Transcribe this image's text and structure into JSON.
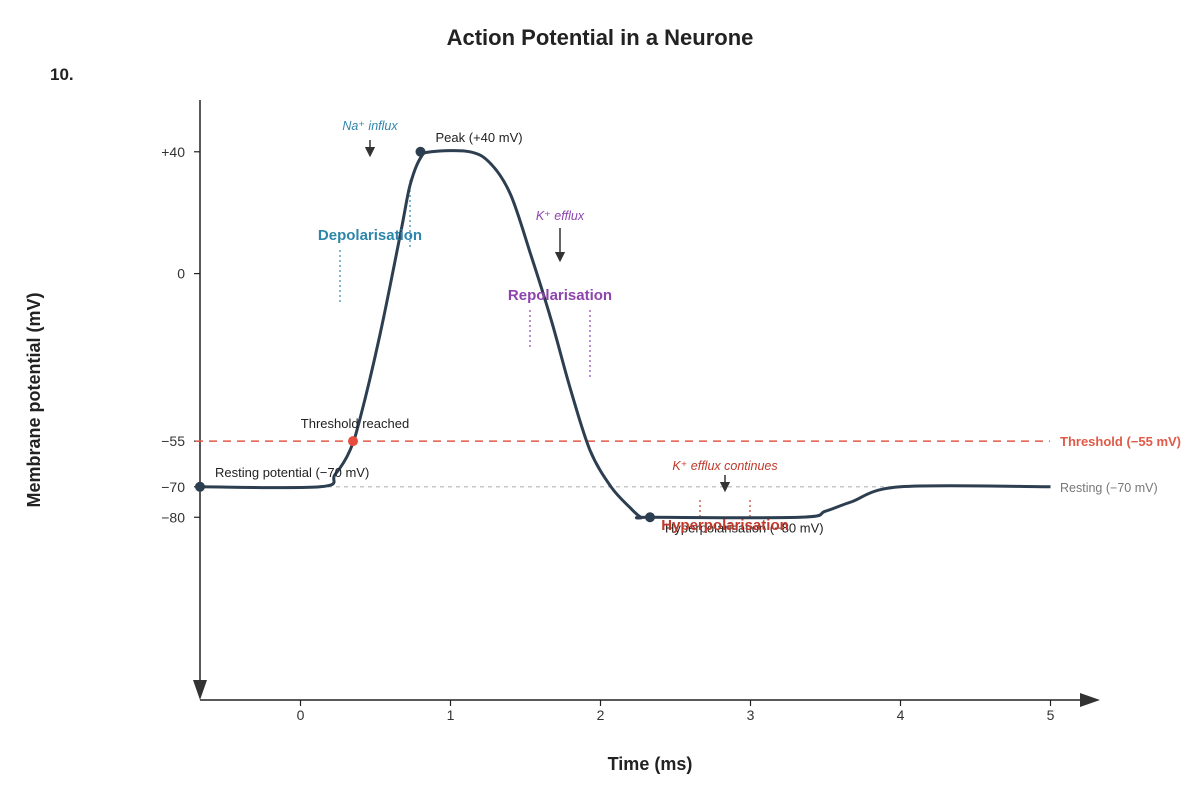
{
  "question_number": "10.",
  "chart_data": {
    "type": "line",
    "title": "Action Potential in a Neurone",
    "xlabel": "Time (ms)",
    "ylabel": "Membrane potential (mV)",
    "x_ticks": [
      0,
      1,
      2,
      3,
      4,
      5
    ],
    "y_ticks": [
      {
        "value": 40,
        "label": "+40"
      },
      {
        "value": 0,
        "label": "0"
      },
      {
        "value": -55,
        "label": "−55"
      },
      {
        "value": -70,
        "label": "−70"
      },
      {
        "value": -80,
        "label": "−80"
      }
    ],
    "xlim": [
      -0.67,
      5.33
    ],
    "ylim": [
      -140,
      57
    ],
    "grid": false,
    "series": [
      {
        "values": [
          {
            "x": -0.67,
            "y": -70
          },
          {
            "x": 0.13,
            "y": -70
          },
          {
            "x": 0.23,
            "y": -66
          },
          {
            "x": 0.33,
            "y": -58
          },
          {
            "x": 0.4,
            "y": -47
          },
          {
            "x": 0.53,
            "y": -20
          },
          {
            "x": 0.67,
            "y": 14
          },
          {
            "x": 0.73,
            "y": 29
          },
          {
            "x": 0.8,
            "y": 38
          },
          {
            "x": 0.87,
            "y": 40
          },
          {
            "x": 1.13,
            "y": 40
          },
          {
            "x": 1.27,
            "y": 36
          },
          {
            "x": 1.4,
            "y": 26
          },
          {
            "x": 1.53,
            "y": 7
          },
          {
            "x": 1.67,
            "y": -15
          },
          {
            "x": 1.8,
            "y": -38
          },
          {
            "x": 1.93,
            "y": -58
          },
          {
            "x": 2.07,
            "y": -70
          },
          {
            "x": 2.2,
            "y": -77
          },
          {
            "x": 2.27,
            "y": -80
          },
          {
            "x": 2.33,
            "y": -80
          },
          {
            "x": 3.33,
            "y": -80
          },
          {
            "x": 3.5,
            "y": -78
          },
          {
            "x": 3.67,
            "y": -75
          },
          {
            "x": 4.0,
            "y": -70
          },
          {
            "x": 5.0,
            "y": -70
          }
        ]
      }
    ],
    "reference_lines": [
      {
        "y": -55,
        "label": "Threshold (−55 mV)",
        "color": "#e05a47",
        "style": "dashed"
      },
      {
        "y": -70,
        "label": "Resting (−70 mV)",
        "color": "#b5b5b5",
        "style": "dashed"
      }
    ],
    "key_points": [
      {
        "x": -0.67,
        "y": -70,
        "label": "Resting potential (−70 mV)",
        "color": "#2c3e50"
      },
      {
        "x": 0.35,
        "y": -55,
        "label": "Threshold reached",
        "color": "#e74c3c"
      },
      {
        "x": 0.8,
        "y": 40,
        "label": "Peak (+40 mV)",
        "color": "#2c3e50"
      },
      {
        "x": 2.33,
        "y": -80,
        "label": "Hyperpolarisation (−80 mV)",
        "color": "#2c3e50"
      }
    ],
    "phases": [
      {
        "label": "Depolarisation",
        "color": "#2e86ab",
        "note": "Na⁺ influx"
      },
      {
        "label": "Repolarisation",
        "color": "#8e44ad",
        "note": "K⁺ efflux"
      },
      {
        "label": "Hyperpolarisation",
        "color": "#c0392b",
        "note": "K⁺ efflux continues"
      }
    ],
    "colors": {
      "curve": "#2c3e50",
      "axis": "#222222"
    }
  }
}
